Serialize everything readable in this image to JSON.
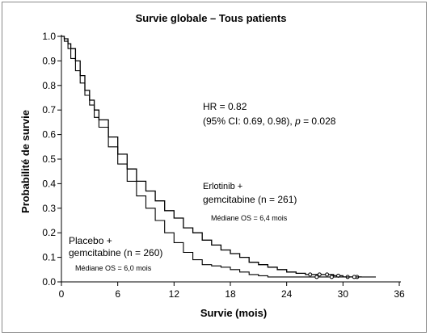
{
  "chart_data": {
    "type": "line",
    "subtype": "kaplan-meier",
    "title": "Survie globale – Tous patients",
    "xlabel": "Survie (mois)",
    "ylabel": "Probabilité de survie",
    "xlim": [
      0,
      36
    ],
    "ylim": [
      0,
      1.0
    ],
    "x_ticks": [
      0,
      6,
      12,
      18,
      24,
      30,
      36
    ],
    "y_ticks": [
      0.0,
      0.1,
      0.2,
      0.3,
      0.4,
      0.5,
      0.6,
      0.7,
      0.8,
      0.9,
      1.0
    ],
    "y_tick_labels": [
      "0.0",
      "0.1",
      "0.2",
      "0.3",
      "0.4",
      "0.5",
      "0.6",
      "0.7",
      "0.8",
      "0.9",
      "1.0"
    ],
    "x_tick_labels": [
      "0",
      "6",
      "12",
      "18",
      "24",
      "30",
      "36"
    ],
    "grid": false,
    "series": [
      {
        "name": "Erlotinib + gemcitabine (n = 261)",
        "color": "#000000",
        "x": [
          0,
          0.3,
          0.7,
          1,
          1.5,
          2,
          2.5,
          3,
          3.5,
          4,
          5,
          6,
          7,
          8,
          9,
          10,
          11,
          12,
          13,
          14,
          15,
          16,
          17,
          18,
          19,
          20,
          21,
          22,
          23,
          24,
          25,
          26,
          27,
          28,
          29,
          30,
          31,
          32
        ],
        "y": [
          1.0,
          0.99,
          0.97,
          0.95,
          0.9,
          0.84,
          0.78,
          0.74,
          0.7,
          0.66,
          0.59,
          0.52,
          0.46,
          0.41,
          0.37,
          0.33,
          0.29,
          0.26,
          0.22,
          0.2,
          0.17,
          0.15,
          0.13,
          0.115,
          0.1,
          0.08,
          0.07,
          0.06,
          0.05,
          0.04,
          0.035,
          0.03,
          0.03,
          0.03,
          0.025,
          0.02,
          0.02,
          0.02
        ],
        "censored_x": [
          26.5,
          27.5,
          28.3,
          29.5,
          30.5,
          31.5
        ],
        "censored_y": [
          0.03,
          0.03,
          0.03,
          0.025,
          0.02,
          0.02
        ]
      },
      {
        "name": "Placebo + gemcitabine (n = 260)",
        "color": "#000000",
        "x": [
          0,
          0.3,
          0.7,
          1,
          1.5,
          2,
          2.5,
          3,
          3.5,
          4,
          5,
          6,
          7,
          8,
          9,
          10,
          11,
          12,
          13,
          14,
          15,
          16,
          17,
          18,
          19,
          20,
          21,
          22,
          23,
          24,
          25,
          26,
          27,
          28,
          29,
          30,
          31,
          32,
          33.5
        ],
        "y": [
          1.0,
          0.98,
          0.95,
          0.91,
          0.86,
          0.81,
          0.76,
          0.72,
          0.67,
          0.63,
          0.55,
          0.48,
          0.41,
          0.35,
          0.3,
          0.25,
          0.2,
          0.16,
          0.12,
          0.09,
          0.07,
          0.065,
          0.06,
          0.05,
          0.04,
          0.03,
          0.025,
          0.02,
          0.02,
          0.02,
          0.02,
          0.02,
          0.02,
          0.02,
          0.02,
          0.02,
          0.02,
          0.02,
          0.02
        ],
        "censored_x": [
          27.2,
          28.8,
          31.2
        ],
        "censored_y": [
          0.02,
          0.02,
          0.02
        ]
      }
    ],
    "annotations": {
      "hr_line1": "HR = 0.82",
      "hr_line2_prefix": "(95% CI: 0.69, 0.98), ",
      "hr_p_symbol": "p",
      "hr_line2_suffix": " = 0.028",
      "erlotinib_line1": "Erlotinib +",
      "erlotinib_line2": "gemcitabine (n = 261)",
      "erlotinib_median": "Médiane OS = 6,4 mois",
      "placebo_line1": "Placebo +",
      "placebo_line2": "gemcitabine (n = 260)",
      "placebo_median": "Médiane OS = 6,0 mois"
    }
  }
}
